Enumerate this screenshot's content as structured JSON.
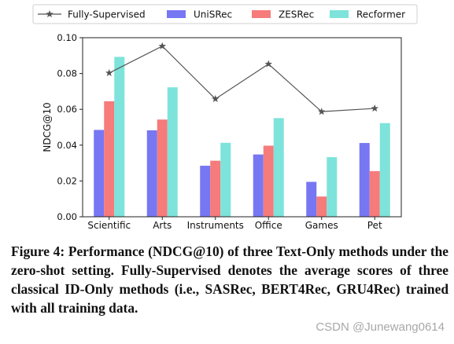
{
  "chart_data": {
    "type": "bar",
    "categories": [
      "Scientific",
      "Arts",
      "Instruments",
      "Office",
      "Games",
      "Pet"
    ],
    "series": [
      {
        "name": "UniSRec",
        "color": "#7777f4",
        "values": [
          0.0485,
          0.0483,
          0.0285,
          0.0348,
          0.0195,
          0.0412
        ]
      },
      {
        "name": "ZESRec",
        "color": "#f67b7b",
        "values": [
          0.0645,
          0.0543,
          0.0313,
          0.0397,
          0.0113,
          0.0255
        ]
      },
      {
        "name": "Recformer",
        "color": "#7ee3da",
        "values": [
          0.0893,
          0.0723,
          0.0413,
          0.0551,
          0.0333,
          0.0523
        ]
      }
    ],
    "line_series": {
      "name": "Fully-Supervised",
      "color": "#555555",
      "marker": "star",
      "values": [
        0.0803,
        0.0953,
        0.0658,
        0.0853,
        0.0587,
        0.0605
      ]
    },
    "title": "",
    "xlabel": "",
    "ylabel": "NDCG@10",
    "ylim": [
      0,
      0.1
    ],
    "yticks": [
      "0.00",
      "0.02",
      "0.04",
      "0.06",
      "0.08",
      "0.10"
    ],
    "grid": false,
    "legend_position": "top"
  },
  "caption": "Figure 4: Performance (NDCG@10) of three Text-Only methods under the zero-shot setting. Fully-Supervised denotes the average scores of three classical ID-Only methods (i.e., SASRec, BERT4Rec, GRU4Rec) trained with all training data.",
  "watermark": "CSDN @Junewang0614"
}
